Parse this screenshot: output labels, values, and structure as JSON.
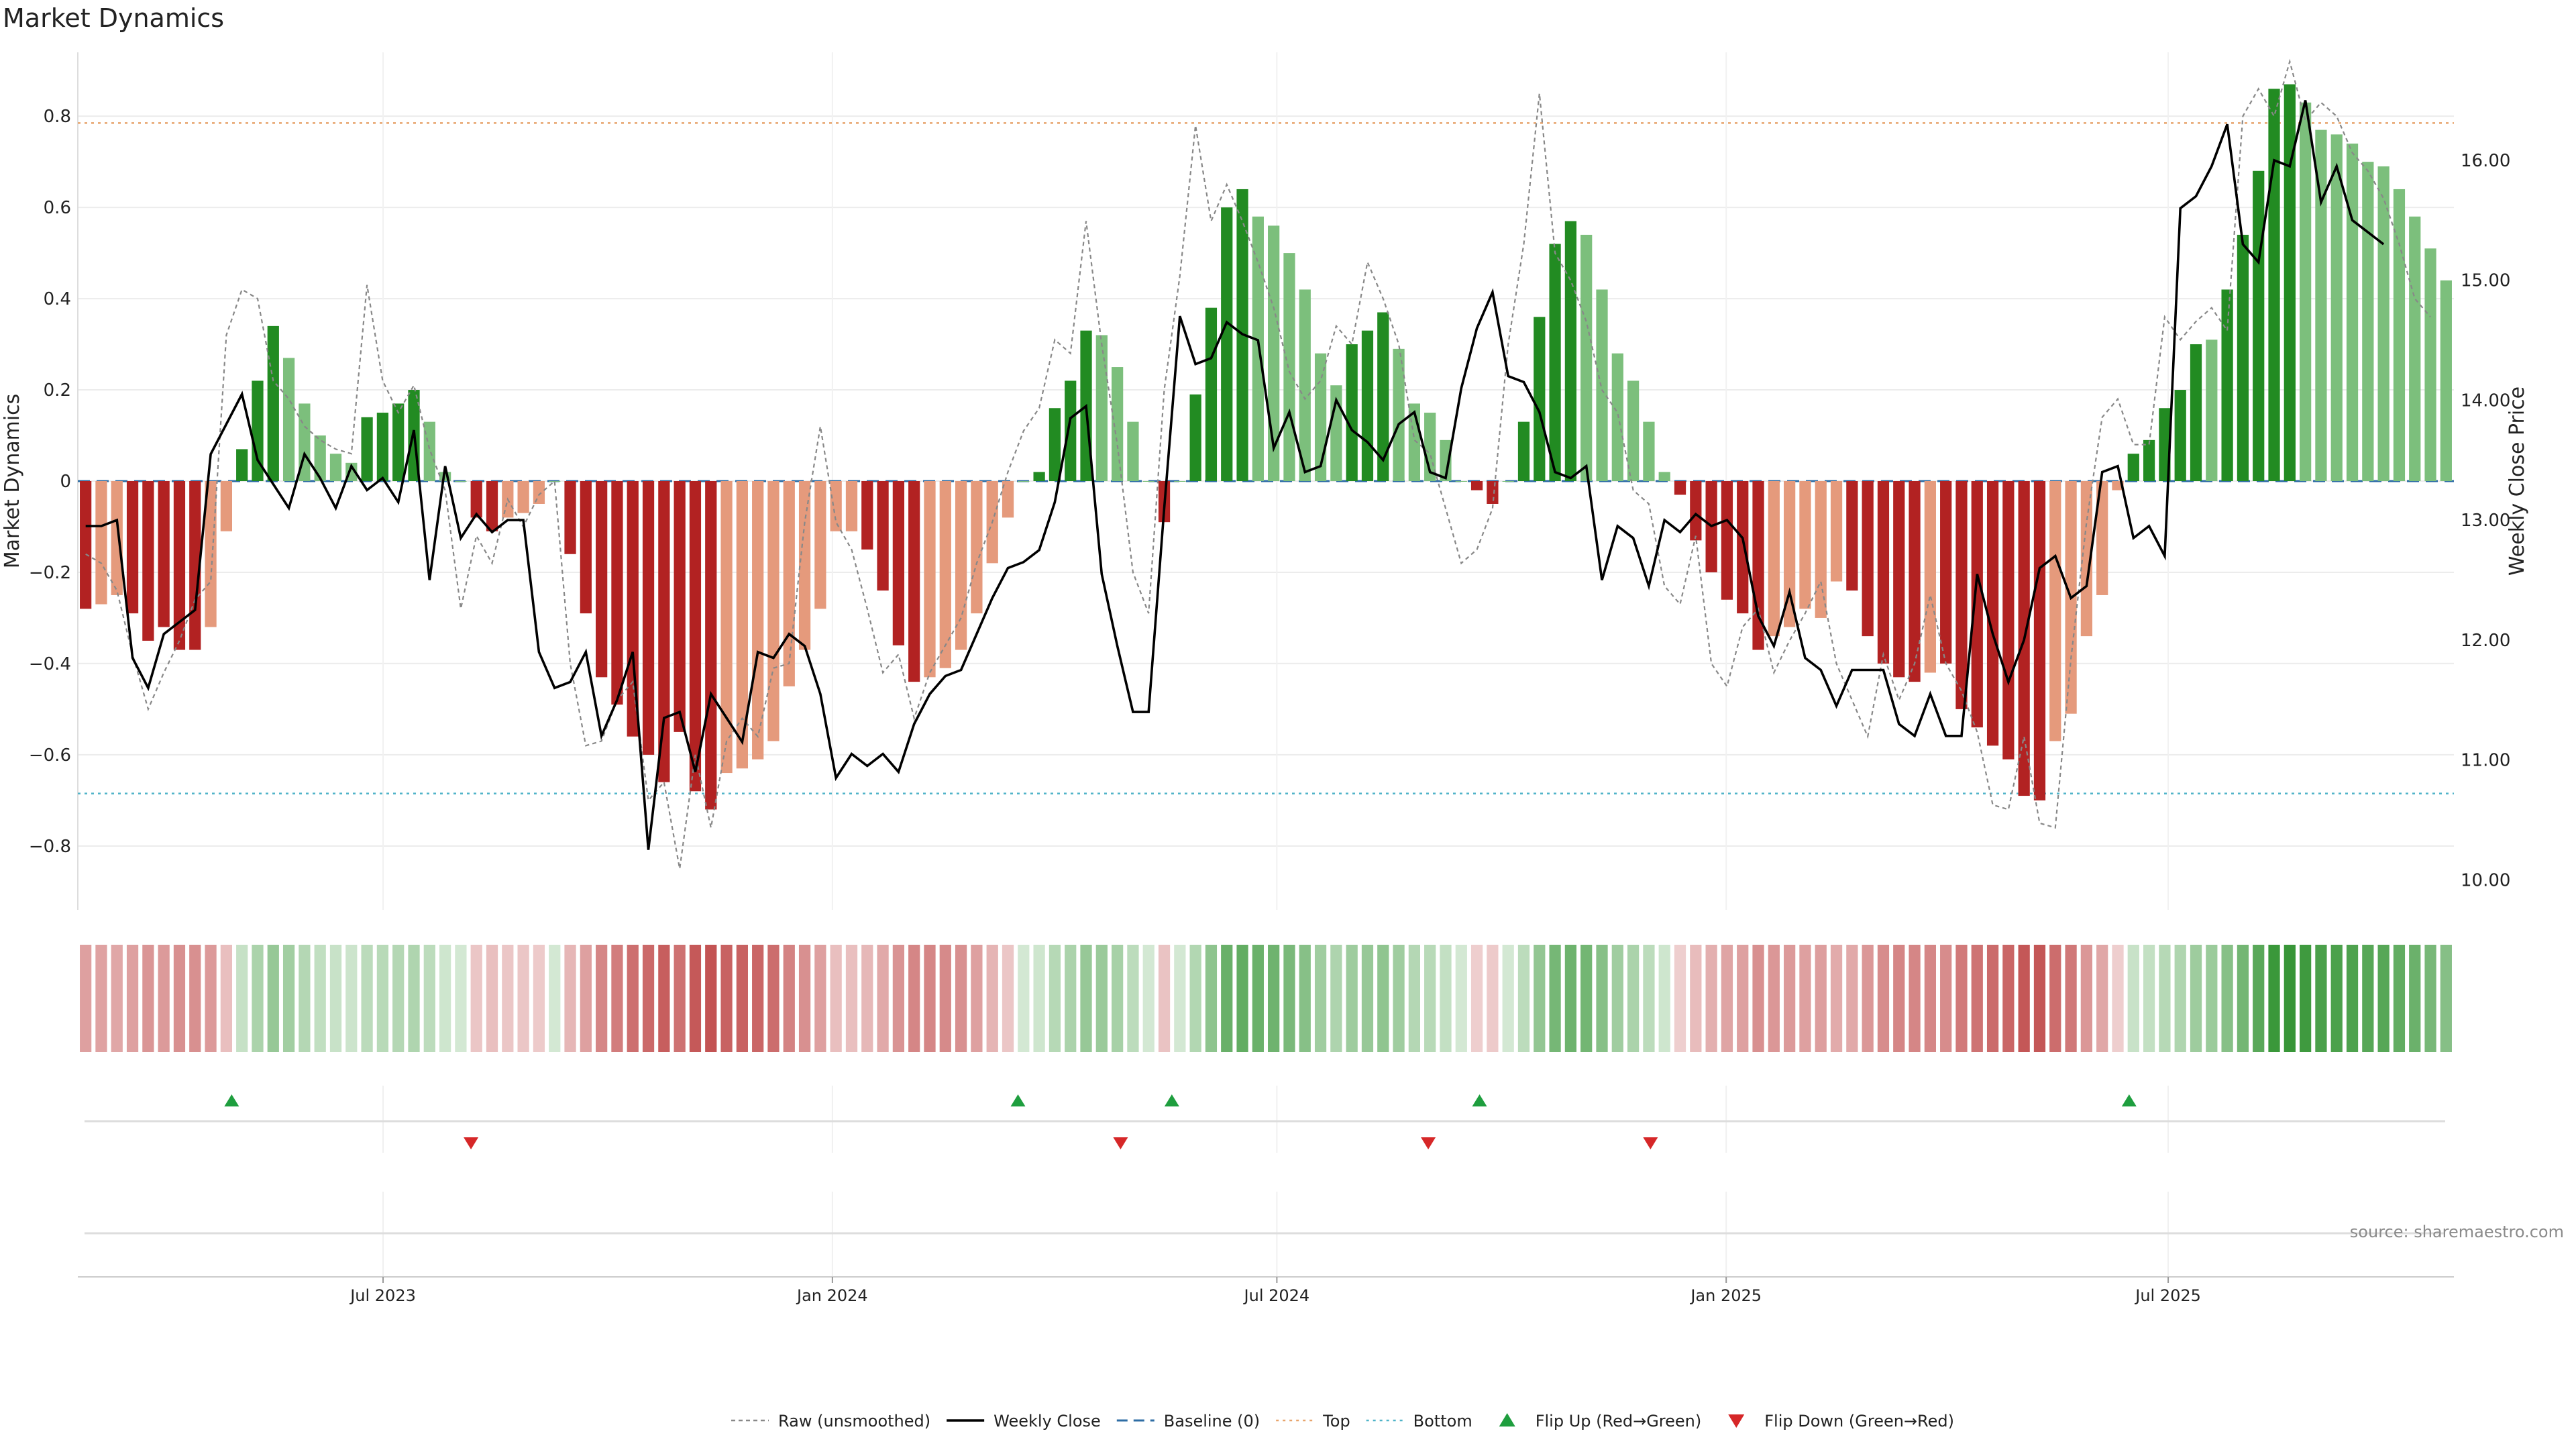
{
  "title": "Market Dynamics",
  "source": "source: sharemaestro.com",
  "chart_data": {
    "type": "bar",
    "title": "Market Dynamics",
    "ylabel_left": "Market Dynamics",
    "ylabel_right": "Weekly Close Price",
    "xlabel": "",
    "ylim_left": [
      -0.94,
      0.94
    ],
    "ylim_right": [
      9.75,
      16.9
    ],
    "yticks_left": [
      0.8,
      0.6,
      0.4,
      0.2,
      0,
      -0.2,
      -0.4,
      -0.6,
      -0.8
    ],
    "ytick_labels_left": [
      "0.8",
      "0.6",
      "0.4",
      "0.2",
      "0",
      "−0.2",
      "−0.4",
      "−0.6",
      "−0.8"
    ],
    "yticks_right": [
      16.0,
      15.0,
      14.0,
      13.0,
      12.0,
      11.0,
      10.0
    ],
    "ytick_labels_right": [
      "16.00",
      "15.00",
      "14.00",
      "13.00",
      "12.00",
      "11.00",
      "10.00"
    ],
    "x_start": "2023-02-26",
    "x_end": "2025-10-26",
    "xticks": [
      {
        "date": "2023-07-01",
        "label": "Jul 2023"
      },
      {
        "date": "2024-01-01",
        "label": "Jan 2024"
      },
      {
        "date": "2024-07-01",
        "label": "Jul 2024"
      },
      {
        "date": "2025-01-01",
        "label": "Jan 2025"
      },
      {
        "date": "2025-07-01",
        "label": "Jul 2025"
      }
    ],
    "reference_lines": [
      {
        "name": "Top",
        "value": 0.785,
        "color": "#e8a46c",
        "style": "dotted"
      },
      {
        "name": "Bottom",
        "value": -0.685,
        "color": "#4fb3c8",
        "style": "dotted"
      },
      {
        "name": "Baseline (0)",
        "value": 0,
        "color": "#2e6da4",
        "style": "dashed"
      }
    ],
    "colors": {
      "strong_up": "#228b22",
      "weak_up": "#7cbf7c",
      "strong_down": "#b22222",
      "weak_down": "#e59a7c",
      "close_line": "#000000",
      "raw_line": "#888888",
      "flip_up": "#1e9e3e",
      "flip_down": "#d62728"
    },
    "dynamics": [
      -0.28,
      -0.27,
      -0.25,
      -0.29,
      -0.35,
      -0.32,
      -0.37,
      -0.37,
      -0.32,
      -0.11,
      0.07,
      0.22,
      0.34,
      0.27,
      0.17,
      0.1,
      0.06,
      0.04,
      0.14,
      0.15,
      0.17,
      0.2,
      0.13,
      0.02,
      0.0,
      -0.08,
      -0.11,
      -0.08,
      -0.07,
      -0.05,
      0.0,
      -0.16,
      -0.29,
      -0.43,
      -0.49,
      -0.56,
      -0.6,
      -0.66,
      -0.55,
      -0.68,
      -0.72,
      -0.64,
      -0.63,
      -0.61,
      -0.57,
      -0.45,
      -0.37,
      -0.28,
      -0.11,
      -0.11,
      -0.15,
      -0.24,
      -0.36,
      -0.44,
      -0.43,
      -0.41,
      -0.37,
      -0.29,
      -0.18,
      -0.08,
      0.0,
      0.02,
      0.16,
      0.22,
      0.33,
      0.32,
      0.25,
      0.13,
      0.0,
      -0.09,
      0.0,
      0.19,
      0.38,
      0.6,
      0.64,
      0.58,
      0.56,
      0.5,
      0.42,
      0.28,
      0.21,
      0.3,
      0.33,
      0.37,
      0.29,
      0.17,
      0.15,
      0.09,
      0.0,
      -0.02,
      -0.05,
      0.0,
      0.13,
      0.36,
      0.52,
      0.57,
      0.54,
      0.42,
      0.28,
      0.22,
      0.13,
      0.02,
      -0.03,
      -0.13,
      -0.2,
      -0.26,
      -0.29,
      -0.37,
      -0.34,
      -0.32,
      -0.28,
      -0.3,
      -0.22,
      -0.24,
      -0.34,
      -0.4,
      -0.43,
      -0.44,
      -0.42,
      -0.4,
      -0.5,
      -0.54,
      -0.58,
      -0.61,
      -0.69,
      -0.7,
      -0.57,
      -0.51,
      -0.34,
      -0.25,
      -0.02,
      0.06,
      0.09,
      0.16,
      0.2,
      0.3,
      0.31,
      0.42,
      0.54,
      0.68,
      0.86,
      0.87,
      0.83,
      0.77,
      0.76,
      0.74,
      0.7,
      0.69,
      0.64,
      0.58,
      0.51,
      0.44
    ],
    "dynamics_strength": [
      "strong",
      "weak",
      "weak",
      "strong",
      "strong",
      "strong",
      "strong",
      "strong",
      "weak",
      "weak",
      "strong",
      "strong",
      "strong",
      "weak",
      "weak",
      "weak",
      "weak",
      "weak",
      "strong",
      "strong",
      "strong",
      "strong",
      "weak",
      "weak",
      "weak",
      "strong",
      "strong",
      "weak",
      "weak",
      "weak",
      "weak",
      "strong",
      "strong",
      "strong",
      "strong",
      "strong",
      "strong",
      "strong",
      "strong",
      "strong",
      "strong",
      "weak",
      "weak",
      "weak",
      "weak",
      "weak",
      "weak",
      "weak",
      "weak",
      "weak",
      "strong",
      "strong",
      "strong",
      "strong",
      "weak",
      "weak",
      "weak",
      "weak",
      "weak",
      "weak",
      "weak",
      "strong",
      "strong",
      "strong",
      "strong",
      "weak",
      "weak",
      "weak",
      "weak",
      "strong",
      "weak",
      "strong",
      "strong",
      "strong",
      "strong",
      "weak",
      "weak",
      "weak",
      "weak",
      "weak",
      "weak",
      "strong",
      "strong",
      "strong",
      "weak",
      "weak",
      "weak",
      "weak",
      "weak",
      "strong",
      "strong",
      "weak",
      "strong",
      "strong",
      "strong",
      "strong",
      "weak",
      "weak",
      "weak",
      "weak",
      "weak",
      "weak",
      "strong",
      "strong",
      "strong",
      "strong",
      "strong",
      "strong",
      "weak",
      "weak",
      "weak",
      "weak",
      "weak",
      "strong",
      "strong",
      "strong",
      "strong",
      "strong",
      "weak",
      "strong",
      "strong",
      "strong",
      "strong",
      "strong",
      "strong",
      "strong",
      "weak",
      "weak",
      "weak",
      "weak",
      "weak",
      "strong",
      "strong",
      "strong",
      "strong",
      "strong",
      "weak",
      "strong",
      "strong",
      "strong",
      "strong",
      "strong",
      "weak",
      "weak",
      "weak",
      "weak",
      "weak",
      "weak",
      "weak",
      "weak",
      "weak",
      "weak"
    ],
    "raw": [
      -0.16,
      -0.18,
      -0.24,
      -0.38,
      -0.5,
      -0.42,
      -0.35,
      -0.26,
      -0.22,
      0.32,
      0.42,
      0.4,
      0.22,
      0.18,
      0.12,
      0.09,
      0.07,
      0.06,
      0.43,
      0.22,
      0.15,
      0.21,
      0.07,
      -0.02,
      -0.28,
      -0.12,
      -0.18,
      -0.04,
      -0.1,
      -0.03,
      0.0,
      -0.4,
      -0.58,
      -0.57,
      -0.48,
      -0.44,
      -0.7,
      -0.66,
      -0.85,
      -0.6,
      -0.76,
      -0.57,
      -0.52,
      -0.56,
      -0.41,
      -0.4,
      -0.09,
      0.12,
      -0.09,
      -0.15,
      -0.28,
      -0.42,
      -0.38,
      -0.52,
      -0.42,
      -0.36,
      -0.3,
      -0.18,
      -0.09,
      0.02,
      0.11,
      0.16,
      0.31,
      0.28,
      0.57,
      0.3,
      0.08,
      -0.2,
      -0.29,
      0.2,
      0.45,
      0.78,
      0.57,
      0.65,
      0.57,
      0.48,
      0.38,
      0.24,
      0.18,
      0.22,
      0.34,
      0.3,
      0.48,
      0.4,
      0.3,
      0.09,
      0.06,
      -0.06,
      -0.18,
      -0.15,
      -0.06,
      0.3,
      0.52,
      0.85,
      0.5,
      0.44,
      0.35,
      0.2,
      0.15,
      -0.02,
      -0.05,
      -0.23,
      -0.27,
      -0.12,
      -0.4,
      -0.45,
      -0.32,
      -0.28,
      -0.42,
      -0.35,
      -0.29,
      -0.22,
      -0.4,
      -0.48,
      -0.56,
      -0.38,
      -0.48,
      -0.4,
      -0.25,
      -0.4,
      -0.46,
      -0.55,
      -0.71,
      -0.72,
      -0.56,
      -0.75,
      -0.76,
      -0.39,
      -0.09,
      0.14,
      0.18,
      0.08,
      0.08,
      0.36,
      0.31,
      0.35,
      0.38,
      0.33,
      0.8,
      0.86,
      0.8,
      0.92,
      0.79,
      0.83,
      0.8,
      0.72,
      0.68,
      0.62,
      0.52,
      0.4,
      0.36
    ]
  },
  "price": [
    12.95,
    12.95,
    13.0,
    11.85,
    11.6,
    12.05,
    12.15,
    12.25,
    13.55,
    13.8,
    14.05,
    13.5,
    13.3,
    13.1,
    13.55,
    13.35,
    13.1,
    13.45,
    13.25,
    13.35,
    13.15,
    13.75,
    12.5,
    13.45,
    12.85,
    13.05,
    12.9,
    13.0,
    13.0,
    11.9,
    11.6,
    11.65,
    11.9,
    11.2,
    11.5,
    11.9,
    10.25,
    11.35,
    11.4,
    10.9,
    11.55,
    11.35,
    11.15,
    11.9,
    11.85,
    12.05,
    11.95,
    11.55,
    10.85,
    11.05,
    10.95,
    11.05,
    10.9,
    11.3,
    11.55,
    11.7,
    11.75,
    12.05,
    12.35,
    12.6,
    12.65,
    12.75,
    13.15,
    13.85,
    13.95,
    12.55,
    11.95,
    11.4,
    11.4,
    13.1,
    14.7,
    14.3,
    14.35,
    14.65,
    14.55,
    14.5,
    13.6,
    13.9,
    13.4,
    13.45,
    14.0,
    13.75,
    13.65,
    13.5,
    13.8,
    13.9,
    13.4,
    13.35,
    14.1,
    14.6,
    14.9,
    14.2,
    14.15,
    13.9,
    13.4,
    13.35,
    13.45,
    12.5,
    12.95,
    12.85,
    12.45,
    13.0,
    12.9,
    13.05,
    12.95,
    13.0,
    12.85,
    12.2,
    11.95,
    12.4,
    11.85,
    11.75,
    11.45,
    11.75,
    11.75,
    11.75,
    11.3,
    11.2,
    11.55,
    11.2,
    11.2,
    12.55,
    12.05,
    11.65,
    12.0,
    12.6,
    12.7,
    12.35,
    12.45,
    13.4,
    13.45,
    12.85,
    12.95,
    12.7,
    15.6,
    15.7,
    15.95,
    16.3,
    15.3,
    15.15,
    16.0,
    15.95,
    16.5,
    15.65,
    15.95,
    15.5,
    15.4,
    15.3
  ],
  "flips": {
    "up_label": "Flip Up (Red→Green)",
    "down_label": "Flip Down (Green→Red)",
    "up": [
      "2023-04-30",
      "2024-03-17",
      "2024-05-19",
      "2024-09-22",
      "2025-06-15"
    ],
    "down": [
      "2023-08-06",
      "2024-04-28",
      "2024-09-01",
      "2024-12-01"
    ]
  },
  "legend": [
    {
      "key": "raw",
      "label": "Raw (unsmoothed)"
    },
    {
      "key": "close",
      "label": "Weekly Close"
    },
    {
      "key": "baseline",
      "label": "Baseline (0)"
    },
    {
      "key": "top",
      "label": "Top"
    },
    {
      "key": "bottom",
      "label": "Bottom"
    },
    {
      "key": "flip_up",
      "label": "Flip Up (Red→Green)"
    },
    {
      "key": "flip_down",
      "label": "Flip Down (Green→Red)"
    }
  ]
}
